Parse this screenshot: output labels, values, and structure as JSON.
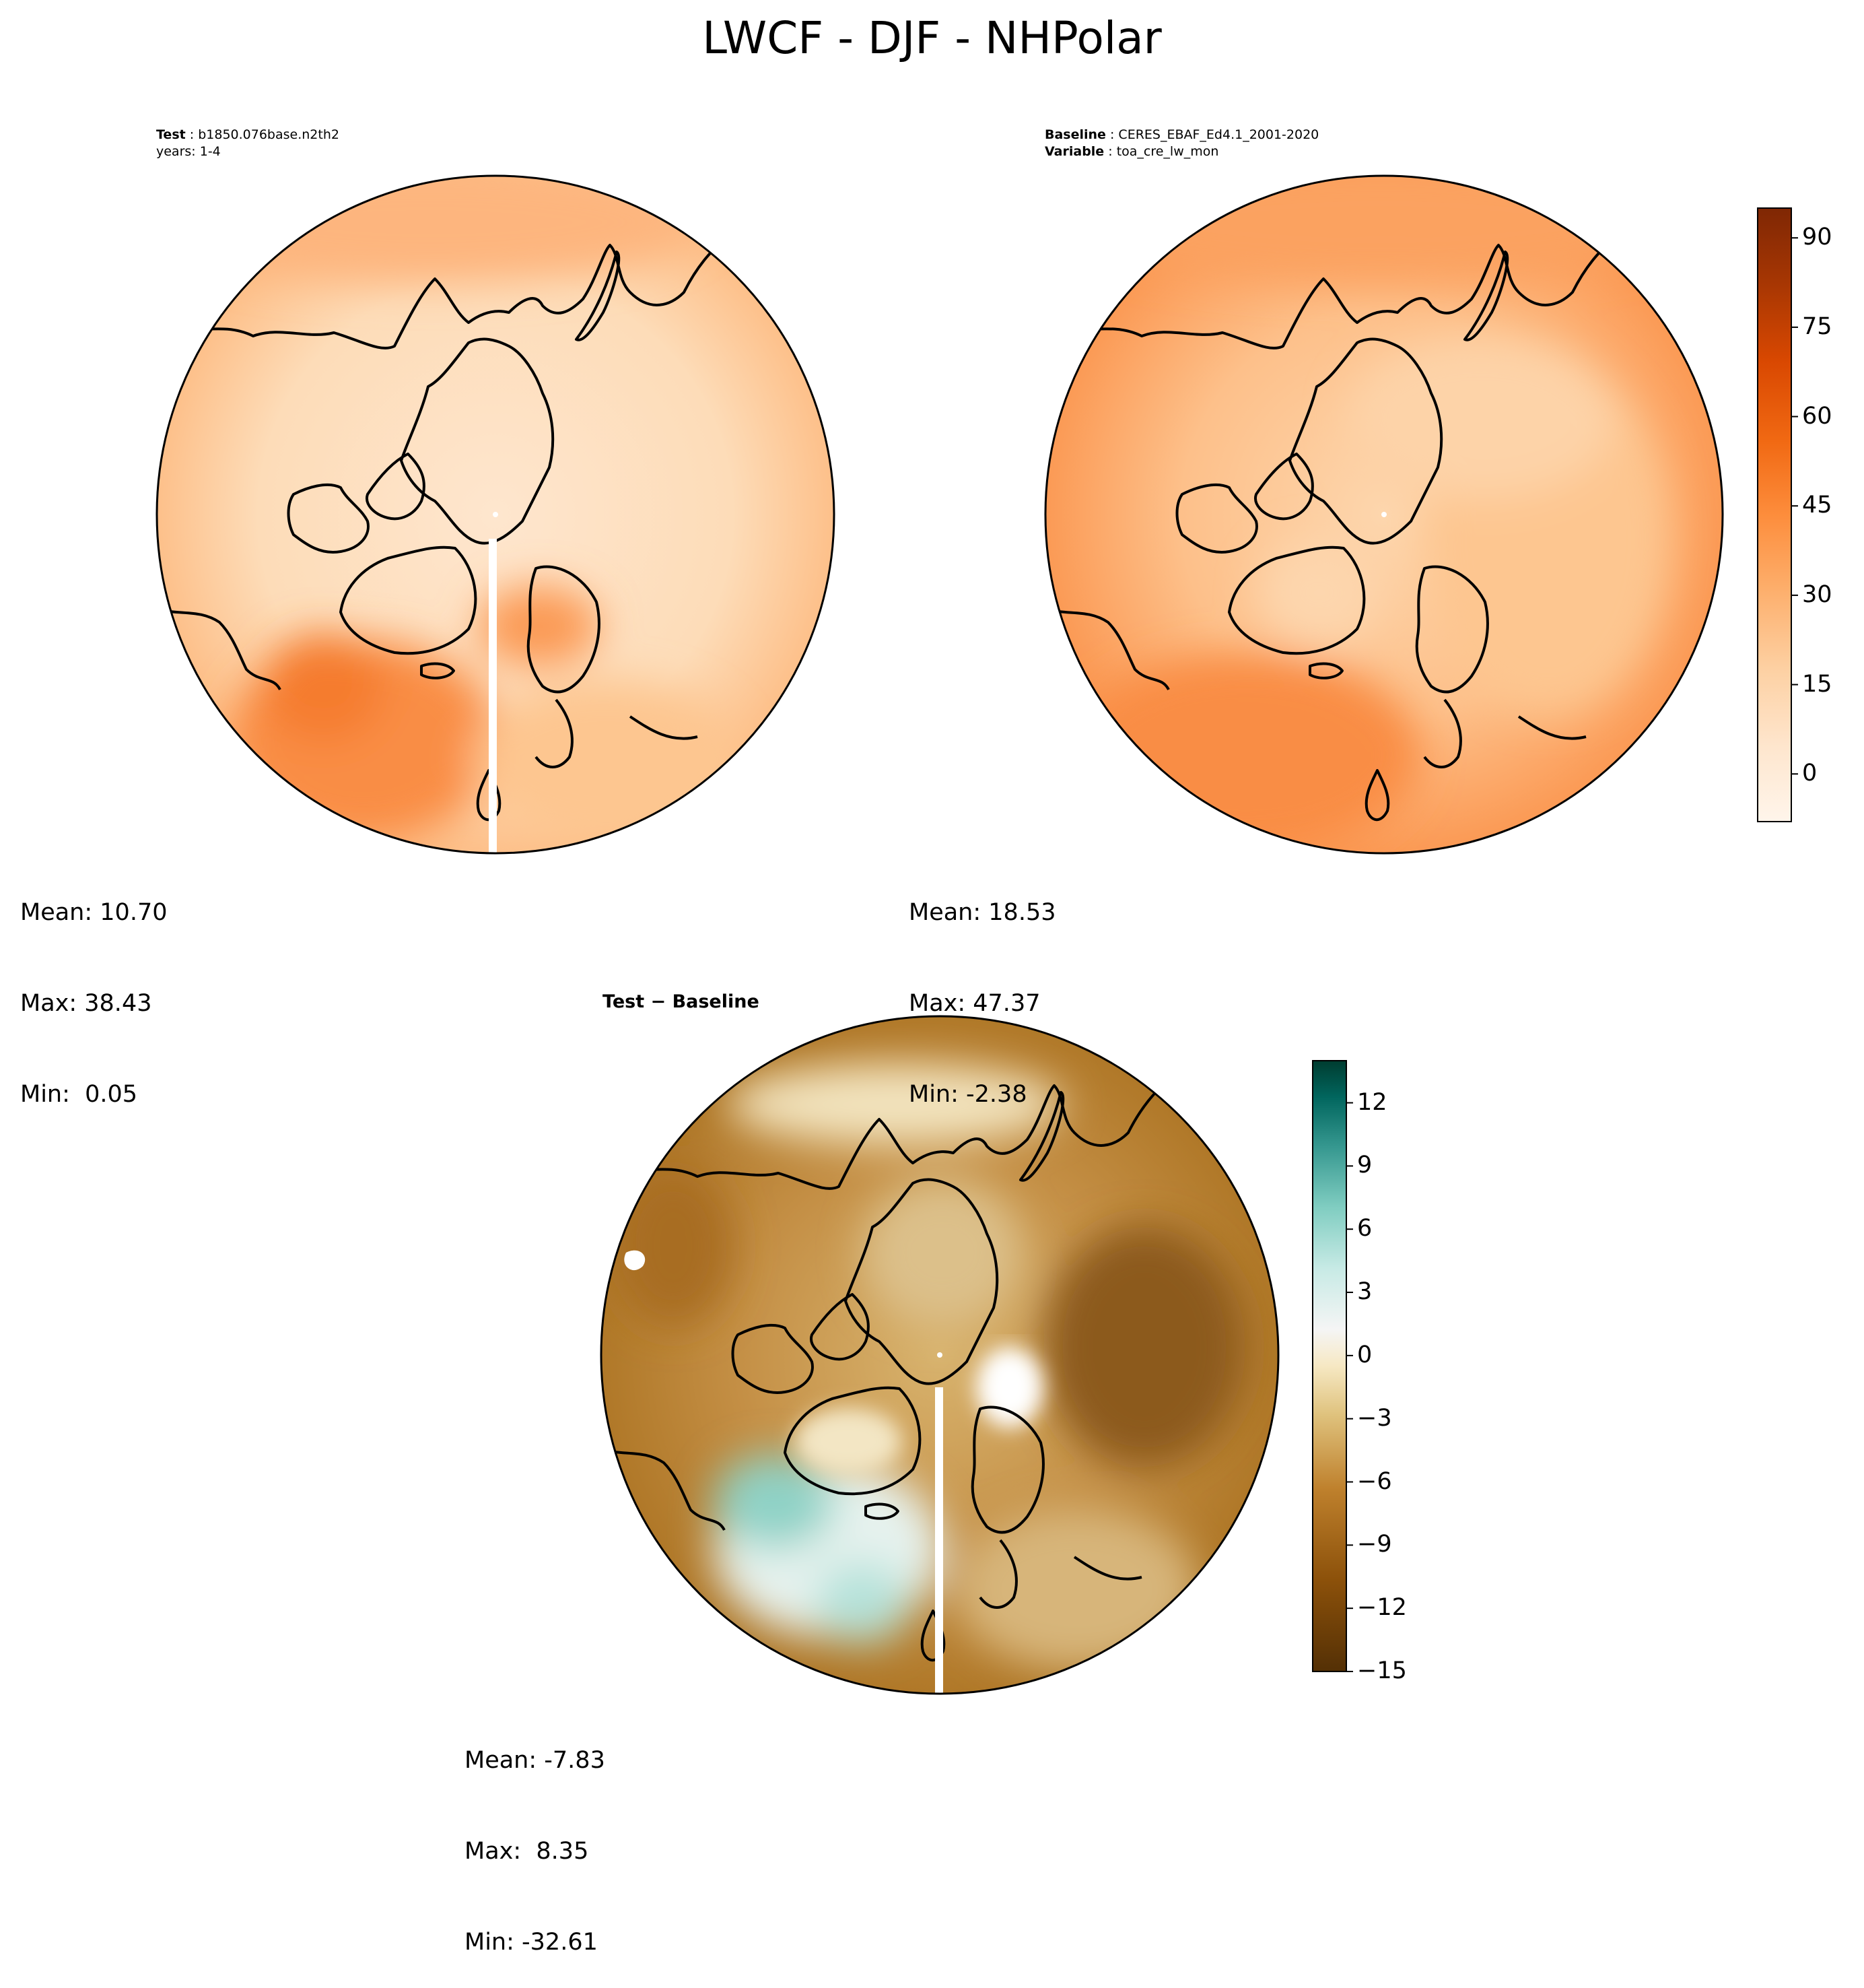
{
  "figure": {
    "title": "LWCF - DJF - NHPolar"
  },
  "panels": {
    "test": {
      "header_label": "Test",
      "header_value": "b1850.076base.n2th2",
      "header_line2": "years: 1-4",
      "stats": {
        "mean": "Mean: 10.70",
        "max": "Max: 38.43",
        "min": "Min:  0.05"
      }
    },
    "baseline": {
      "header_label": "Baseline",
      "header_value": "CERES_EBAF_Ed4.1_2001-2020",
      "header_label2": "Variable",
      "header_value2": "toa_cre_lw_mon",
      "stats": {
        "mean": "Mean: 18.53",
        "max": "Max: 47.37",
        "min": "Min: -2.38"
      }
    },
    "diff": {
      "title_a": "Test",
      "title_sep": " − ",
      "title_b": "Baseline",
      "stats": {
        "mean": "Mean: -7.83",
        "max": "Max:  8.35",
        "min": "Min: -32.61"
      }
    }
  },
  "colorbars": {
    "main": {
      "cmap": "Oranges",
      "ticks": [
        "90",
        "75",
        "60",
        "45",
        "30",
        "15",
        "0"
      ],
      "range": [
        -8,
        95
      ]
    },
    "diff": {
      "cmap": "BrBG",
      "ticks": [
        "12",
        "9",
        "6",
        "3",
        "0",
        "−3",
        "−6",
        "−9",
        "−12",
        "−15"
      ],
      "range": [
        -15,
        14
      ]
    }
  },
  "colors": {
    "oranges": [
      "#fff5eb",
      "#fee6ce",
      "#fdd0a2",
      "#fdae6b",
      "#fd8d3c",
      "#f16913",
      "#d94801",
      "#a63603",
      "#7f2704"
    ],
    "brbg": [
      "#543005",
      "#8c510a",
      "#bf812d",
      "#dfc27d",
      "#f6e8c3",
      "#f5f5f5",
      "#c7eae5",
      "#80cdc1",
      "#35978f",
      "#01665e",
      "#003c30"
    ]
  }
}
